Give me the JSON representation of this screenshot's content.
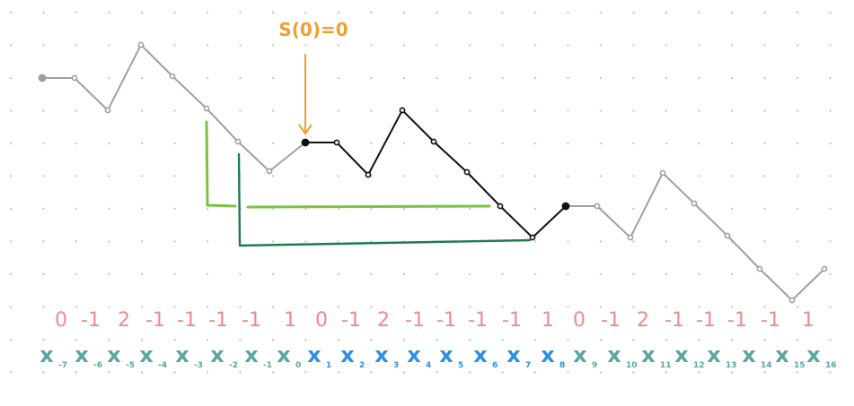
{
  "annotation": {
    "label": "S(0)=0",
    "color": "#f0a030"
  },
  "colors": {
    "grid_dot": "#c8c8c8",
    "path_gray": "#a0a0a0",
    "path_black": "#111111",
    "bracket_light": "#7cc242",
    "bracket_dark": "#1f7a4d",
    "step_values": "#f08a8a",
    "x_outer": "#5aa5a0",
    "x_inner": "#2f8fe0"
  },
  "step_values": [
    "0",
    "-1",
    "2",
    "-1",
    "-1",
    "-1",
    "-1",
    "1",
    "0",
    "-1",
    "2",
    "-1",
    "-1",
    "-1",
    "-1",
    "1",
    "0",
    "-1",
    "2",
    "-1",
    "-1",
    "-1",
    "-1",
    "1"
  ],
  "x_labels": [
    {
      "base": "x",
      "sub": "-7",
      "group": "outer"
    },
    {
      "base": "x",
      "sub": "-6",
      "group": "outer"
    },
    {
      "base": "x",
      "sub": "-5",
      "group": "outer"
    },
    {
      "base": "x",
      "sub": "-4",
      "group": "outer"
    },
    {
      "base": "x",
      "sub": "-3",
      "group": "outer"
    },
    {
      "base": "x",
      "sub": "-2",
      "group": "outer"
    },
    {
      "base": "x",
      "sub": "-1",
      "group": "outer"
    },
    {
      "base": "x",
      "sub": "0",
      "group": "outer"
    },
    {
      "base": "x",
      "sub": "1",
      "group": "inner"
    },
    {
      "base": "x",
      "sub": "2",
      "group": "inner"
    },
    {
      "base": "x",
      "sub": "3",
      "group": "inner"
    },
    {
      "base": "x",
      "sub": "4",
      "group": "inner"
    },
    {
      "base": "x",
      "sub": "5",
      "group": "inner"
    },
    {
      "base": "x",
      "sub": "6",
      "group": "inner"
    },
    {
      "base": "x",
      "sub": "7",
      "group": "inner"
    },
    {
      "base": "x",
      "sub": "8",
      "group": "inner"
    },
    {
      "base": "x",
      "sub": "9",
      "group": "outer"
    },
    {
      "base": "x",
      "sub": "10",
      "group": "outer"
    },
    {
      "base": "x",
      "sub": "11",
      "group": "outer"
    },
    {
      "base": "x",
      "sub": "12",
      "group": "outer"
    },
    {
      "base": "x",
      "sub": "13",
      "group": "outer"
    },
    {
      "base": "x",
      "sub": "14",
      "group": "outer"
    },
    {
      "base": "x",
      "sub": "15",
      "group": "outer"
    },
    {
      "base": "x",
      "sub": "16",
      "group": "outer"
    }
  ]
}
